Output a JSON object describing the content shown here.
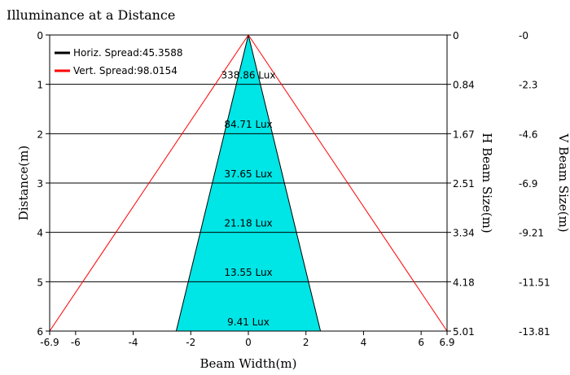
{
  "chart_data": {
    "type": "line",
    "title": "Illuminance at a Distance",
    "xlabel": "Beam Width(m)",
    "ylabel": "Distance(m)",
    "right_label_1": "H Beam Size(m)",
    "right_label_2": "V Beam Size(m)",
    "xlim": [
      -6.9,
      6.9
    ],
    "ylim": [
      0,
      6
    ],
    "x_ticks": [
      {
        "v": -6.9,
        "label": "-6.9"
      },
      {
        "v": -6,
        "label": "-6"
      },
      {
        "v": -4,
        "label": "-4"
      },
      {
        "v": -2,
        "label": "-2"
      },
      {
        "v": 0,
        "label": "0"
      },
      {
        "v": 2,
        "label": "2"
      },
      {
        "v": 4,
        "label": "4"
      },
      {
        "v": 6,
        "label": "6"
      },
      {
        "v": 6.9,
        "label": "6.9"
      }
    ],
    "y_ticks": [
      {
        "v": 0,
        "label": "0"
      },
      {
        "v": 1,
        "label": "1"
      },
      {
        "v": 2,
        "label": "2"
      },
      {
        "v": 3,
        "label": "3"
      },
      {
        "v": 4,
        "label": "4"
      },
      {
        "v": 5,
        "label": "5"
      },
      {
        "v": 6,
        "label": "6"
      }
    ],
    "h_beam_ticks": [
      {
        "v": 0,
        "label": "0"
      },
      {
        "v": 1,
        "label": "0.84"
      },
      {
        "v": 2,
        "label": "1.67"
      },
      {
        "v": 3,
        "label": "2.51"
      },
      {
        "v": 4,
        "label": "3.34"
      },
      {
        "v": 5,
        "label": "4.18"
      },
      {
        "v": 6,
        "label": "5.01"
      }
    ],
    "v_beam_ticks": [
      {
        "v": 0,
        "label": "-0"
      },
      {
        "v": 1,
        "label": "-2.3"
      },
      {
        "v": 2,
        "label": "-4.6"
      },
      {
        "v": 3,
        "label": "-6.9"
      },
      {
        "v": 4,
        "label": "-9.21"
      },
      {
        "v": 5,
        "label": "-11.51"
      },
      {
        "v": 6,
        "label": "-13.81"
      }
    ],
    "gridlines": [
      1,
      2,
      3,
      4,
      5
    ],
    "series": [
      {
        "name": "Horiz. Spread:45.3588",
        "color": "#000000",
        "fill": "#00e5e5",
        "points": [
          [
            0,
            0
          ],
          [
            -2.505,
            6
          ],
          [
            2.505,
            6
          ]
        ]
      },
      {
        "name": "Vert. Spread:98.0154",
        "color": "#ff0000",
        "points": [
          [
            0,
            0
          ],
          [
            -6.9,
            6
          ],
          [
            6.9,
            6
          ]
        ]
      }
    ],
    "annotations": [
      {
        "distance": 0.8,
        "text": "338.86 Lux"
      },
      {
        "distance": 1.8,
        "text": "84.71 Lux"
      },
      {
        "distance": 2.8,
        "text": "37.65 Lux"
      },
      {
        "distance": 3.8,
        "text": "21.18 Lux"
      },
      {
        "distance": 4.8,
        "text": "13.55 Lux"
      },
      {
        "distance": 5.8,
        "text": "9.41 Lux"
      }
    ],
    "legend": "top-left"
  }
}
